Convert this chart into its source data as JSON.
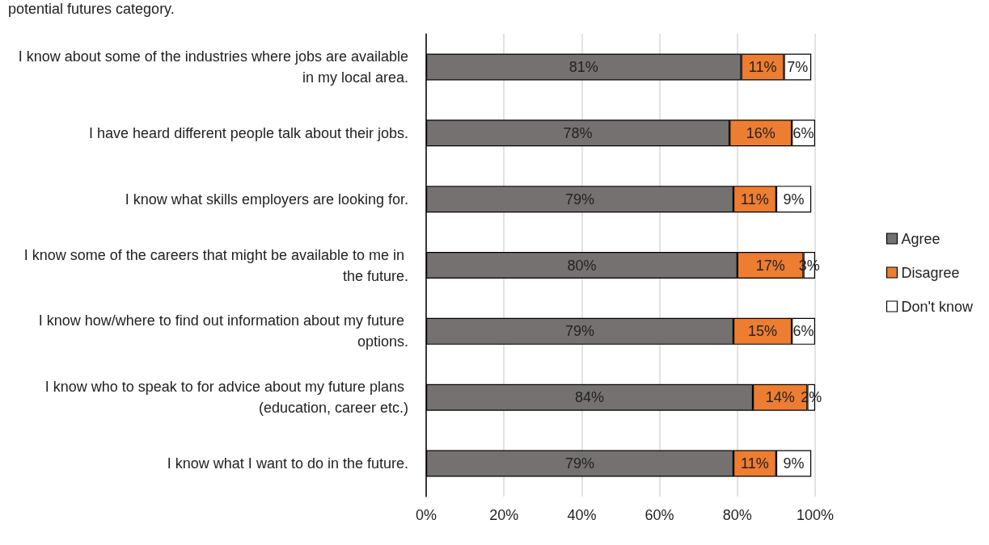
{
  "chart_data": {
    "type": "bar",
    "orientation": "horizontal",
    "stacked": true,
    "annotations": [
      "potential futures category."
    ],
    "categories": [
      "I know about some of the industries where jobs are available in my local area.",
      "I have heard different people talk about their jobs.",
      "I know what skills employers are looking for.",
      "I know some of the careers that might be available to me in the future.",
      "I know how/where to find out information about my future options.",
      "I know who to speak to for advice about my future plans (education, career etc.)",
      "I know what I want to do in the future."
    ],
    "series": [
      {
        "name": "Agree",
        "color": "#767171",
        "values": [
          81,
          78,
          79,
          80,
          79,
          84,
          79
        ],
        "value_labels": [
          "81%",
          "78%",
          "79%",
          "80%",
          "79%",
          "84%",
          "79%"
        ]
      },
      {
        "name": "Disagree",
        "color": "#ed7d31",
        "values": [
          11,
          16,
          11,
          17,
          15,
          14,
          11
        ],
        "value_labels": [
          "11%",
          "16%",
          "11%",
          "17%",
          "15%",
          "14%",
          "11%"
        ]
      },
      {
        "name": "Don't know",
        "color": "#ffffff",
        "values": [
          7,
          6,
          9,
          3,
          6,
          2,
          9
        ],
        "value_labels": [
          "7%",
          "6%",
          "9%",
          "3%",
          "6%",
          "2%",
          "9%"
        ]
      }
    ],
    "xlim": [
      0,
      100
    ],
    "xticks": [
      {
        "value": 0,
        "label": "0%"
      },
      {
        "value": 20,
        "label": "20%"
      },
      {
        "value": 40,
        "label": "40%"
      },
      {
        "value": 60,
        "label": "60%"
      },
      {
        "value": 80,
        "label": "80%"
      },
      {
        "value": 100,
        "label": "100%"
      }
    ],
    "grid": "x",
    "legend": "right"
  }
}
